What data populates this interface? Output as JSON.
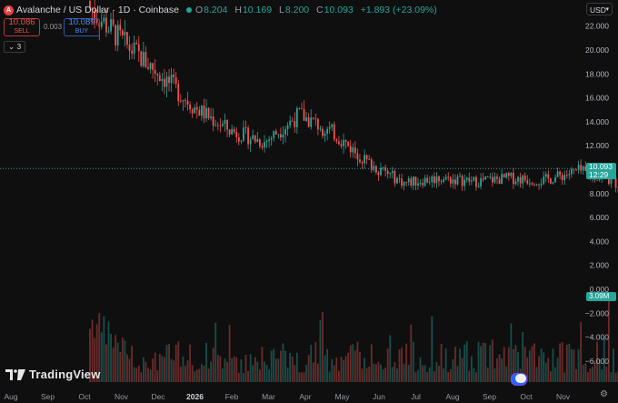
{
  "header": {
    "logo_letter": "A",
    "title": "Avalanche / US Dollar · 1D · Coinbase",
    "open_label": "O",
    "open": "8.204",
    "high_label": "H",
    "high": "10.169",
    "low_label": "L",
    "low": "8.200",
    "close_label": "C",
    "close": "10.093",
    "change": "+1.893 (+23.09%)"
  },
  "trade": {
    "sell_price": "10.086",
    "sell_label": "SELL",
    "buy_price": "10.089",
    "buy_label": "BUY",
    "spread": "0.003"
  },
  "indicator_toggle": "3",
  "currency": "USD",
  "last_price": {
    "value": "10.093",
    "countdown": "12:29"
  },
  "volume_tag": "3.09M",
  "brand": "TradingView",
  "colors": {
    "up": "#26a69a",
    "down": "#ef5350",
    "background": "#0f0f0f"
  },
  "chart_data": {
    "type": "candlestick",
    "symbol": "AVAXUSD",
    "interval": "1D",
    "x_tick_labels": [
      "Aug",
      "Sep",
      "Oct",
      "Nov",
      "Dec",
      "2026",
      "Feb",
      "Mar",
      "Apr",
      "May",
      "Jun",
      "Jul",
      "Aug",
      "Sep",
      "Oct",
      "Nov"
    ],
    "y_tick_labels": [
      "22.000",
      "20.000",
      "18.000",
      "16.000",
      "14.000",
      "12.000",
      "10.000",
      "8.000",
      "6.000",
      "4.000",
      "2.000",
      "0.000",
      "−2.000",
      "−4.000",
      "−6.000"
    ],
    "ylim": [
      -7.0,
      23.5
    ],
    "y_ticks": [
      22,
      20,
      18,
      16,
      14,
      12,
      10,
      8,
      6,
      4,
      2,
      0,
      -2,
      -4,
      -6
    ],
    "price_path": [
      {
        "month": "Oct",
        "close": 23.5
      },
      {
        "month": "Oct-mid",
        "close": 20.5
      },
      {
        "month": "Nov",
        "close": 18.0
      },
      {
        "month": "Nov-mid",
        "close": 15.2
      },
      {
        "month": "Dec",
        "close": 13.3
      },
      {
        "month": "Dec-mid",
        "close": 12.3
      },
      {
        "month": "2026",
        "close": 14.6
      },
      {
        "month": "Jan-mid",
        "close": 13.0
      },
      {
        "month": "Feb",
        "close": 10.5
      },
      {
        "month": "Feb-mid",
        "close": 8.9
      },
      {
        "month": "Mar",
        "close": 9.3
      },
      {
        "month": "Mar-mid",
        "close": 9.0
      },
      {
        "month": "Apr",
        "close": 9.3
      },
      {
        "month": "Apr-mid",
        "close": 9.1
      },
      {
        "month": "May",
        "close": 9.9
      },
      {
        "month": "May-mid",
        "close": 9.0
      },
      {
        "month": "Jun",
        "close": 7.0
      },
      {
        "month": "Jun-mid",
        "close": 6.3
      },
      {
        "month": "Jul",
        "close": 6.6
      },
      {
        "month": "Jul-mid",
        "close": 6.5
      },
      {
        "month": "Aug",
        "close": 6.4
      },
      {
        "month": "Aug-mid",
        "close": 7.6
      },
      {
        "month": "Sep",
        "close": 7.9
      },
      {
        "month": "Sep-mid",
        "close": 8.2
      },
      {
        "month": "Sep-end",
        "close": 10.093
      }
    ],
    "last_price": 10.093
  }
}
